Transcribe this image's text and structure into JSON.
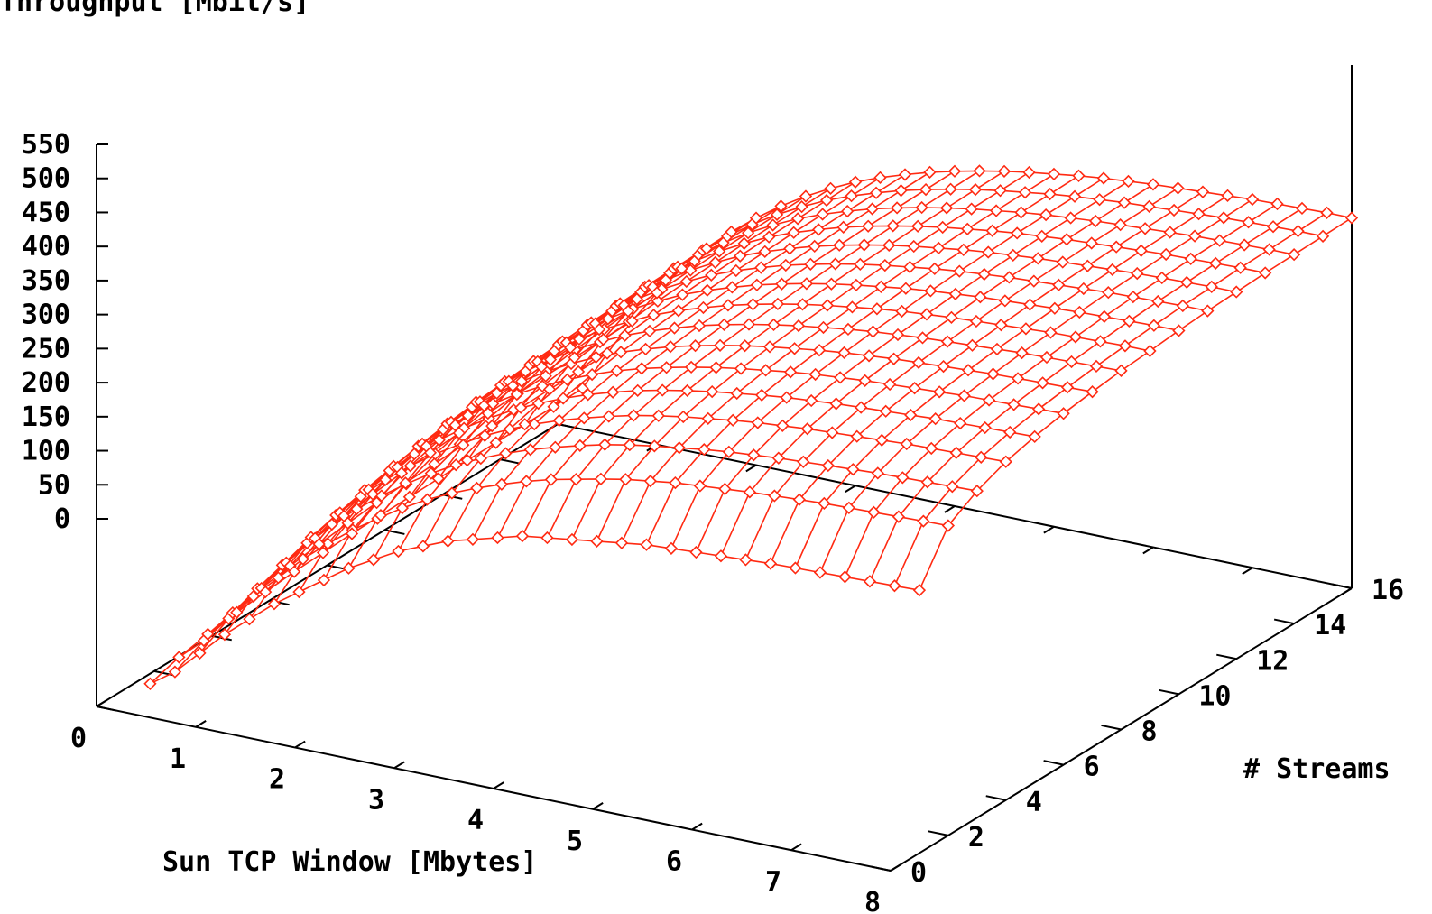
{
  "chart_data": {
    "type": "surface-3d",
    "title": "",
    "zlabel": "Throughput [Mbit/s]",
    "xlabel": "Sun TCP Window [Mbytes]",
    "ylabel": "# Streams",
    "xlim": [
      0,
      8
    ],
    "ylim": [
      0,
      16
    ],
    "zlim": [
      0,
      550
    ],
    "xticks": [
      "0",
      "1",
      "2",
      "3",
      "4",
      "5",
      "6",
      "7",
      "8"
    ],
    "yticks": [
      "0",
      "2",
      "4",
      "6",
      "8",
      "10",
      "12",
      "14",
      "16"
    ],
    "zticks": [
      "0",
      "50",
      "100",
      "150",
      "200",
      "250",
      "300",
      "350",
      "400",
      "450",
      "500",
      "550"
    ],
    "x": [
      0.25,
      0.5,
      0.75,
      1,
      1.25,
      1.5,
      1.75,
      2,
      2.25,
      2.5,
      2.75,
      3,
      3.25,
      3.5,
      3.75,
      4,
      4.25,
      4.5,
      4.75,
      5,
      5.25,
      5.5,
      5.75,
      6,
      6.25,
      6.5,
      6.75,
      7,
      7.25,
      7.5,
      7.75,
      8
    ],
    "series": [
      {
        "streams": 1,
        "values": [
          15,
          40,
          75,
          110,
          140,
          170,
          195,
          220,
          245,
          265,
          285,
          300,
          315,
          325,
          335,
          345,
          350,
          355,
          360,
          365,
          370,
          372,
          374,
          376,
          378,
          380,
          381,
          382,
          383,
          384,
          385,
          386
        ]
      },
      {
        "streams": 2,
        "values": [
          28,
          60,
          100,
          140,
          175,
          210,
          240,
          268,
          292,
          315,
          335,
          352,
          367,
          380,
          392,
          402,
          410,
          418,
          425,
          430,
          435,
          438,
          441,
          444,
          446,
          448,
          450,
          451,
          452,
          453,
          454,
          455
        ]
      },
      {
        "streams": 3,
        "values": [
          36,
          75,
          118,
          160,
          200,
          235,
          265,
          292,
          317,
          340,
          360,
          377,
          392,
          405,
          416,
          426,
          435,
          442,
          448,
          453,
          458,
          462,
          465,
          468,
          470,
          472,
          474,
          476,
          477,
          478,
          479,
          480
        ]
      },
      {
        "streams": 4,
        "values": [
          42,
          85,
          130,
          175,
          215,
          250,
          282,
          310,
          335,
          357,
          377,
          394,
          409,
          422,
          433,
          443,
          452,
          459,
          465,
          470,
          475,
          479,
          482,
          485,
          487,
          489,
          491,
          493,
          494,
          495,
          496,
          497
        ]
      },
      {
        "streams": 5,
        "values": [
          46,
          92,
          140,
          185,
          226,
          262,
          294,
          322,
          347,
          369,
          389,
          406,
          421,
          434,
          445,
          455,
          463,
          470,
          476,
          481,
          486,
          490,
          493,
          496,
          498,
          500,
          502,
          504,
          505,
          506,
          507,
          508
        ]
      },
      {
        "streams": 6,
        "values": [
          50,
          98,
          147,
          193,
          235,
          272,
          304,
          332,
          357,
          379,
          398,
          415,
          430,
          443,
          454,
          463,
          471,
          478,
          484,
          489,
          494,
          498,
          501,
          504,
          506,
          508,
          510,
          512,
          513,
          514,
          515,
          516
        ]
      },
      {
        "streams": 7,
        "values": [
          52,
          103,
          153,
          200,
          242,
          279,
          311,
          339,
          364,
          386,
          405,
          422,
          437,
          449,
          460,
          469,
          477,
          484,
          490,
          495,
          500,
          504,
          507,
          510,
          512,
          514,
          516,
          518,
          519,
          520,
          521,
          522
        ]
      },
      {
        "streams": 8,
        "values": [
          54,
          107,
          158,
          205,
          248,
          285,
          317,
          345,
          370,
          392,
          411,
          428,
          442,
          454,
          465,
          474,
          482,
          489,
          495,
          500,
          505,
          509,
          512,
          515,
          517,
          519,
          521,
          523,
          524,
          525,
          526,
          527
        ]
      },
      {
        "streams": 9,
        "values": [
          55,
          110,
          162,
          210,
          252,
          289,
          321,
          349,
          374,
          396,
          415,
          432,
          446,
          458,
          469,
          478,
          486,
          493,
          499,
          504,
          509,
          513,
          516,
          519,
          521,
          523,
          525,
          527,
          528,
          529,
          530,
          530
        ]
      },
      {
        "streams": 10,
        "values": [
          56,
          112,
          165,
          213,
          256,
          293,
          325,
          353,
          378,
          400,
          419,
          436,
          450,
          462,
          473,
          482,
          490,
          497,
          503,
          508,
          513,
          517,
          520,
          523,
          525,
          527,
          529,
          531,
          532,
          533,
          534,
          534
        ]
      },
      {
        "streams": 11,
        "values": [
          57,
          114,
          168,
          216,
          259,
          296,
          328,
          356,
          381,
          403,
          422,
          439,
          453,
          465,
          476,
          485,
          493,
          500,
          506,
          511,
          516,
          520,
          523,
          526,
          528,
          530,
          532,
          534,
          535,
          536,
          537,
          537
        ]
      },
      {
        "streams": 12,
        "values": [
          58,
          116,
          170,
          218,
          261,
          298,
          330,
          358,
          383,
          405,
          424,
          441,
          455,
          467,
          478,
          487,
          495,
          502,
          508,
          513,
          518,
          522,
          525,
          528,
          530,
          532,
          534,
          536,
          537,
          538,
          539,
          539
        ]
      },
      {
        "streams": 13,
        "values": [
          58,
          117,
          171,
          220,
          263,
          300,
          332,
          360,
          385,
          407,
          426,
          443,
          457,
          469,
          480,
          489,
          497,
          504,
          510,
          515,
          520,
          524,
          527,
          530,
          532,
          534,
          536,
          538,
          539,
          540,
          541,
          541
        ]
      },
      {
        "streams": 14,
        "values": [
          59,
          118,
          172,
          221,
          264,
          301,
          333,
          361,
          386,
          408,
          427,
          444,
          458,
          470,
          481,
          490,
          498,
          505,
          511,
          516,
          521,
          525,
          528,
          531,
          533,
          535,
          537,
          539,
          540,
          541,
          542,
          542
        ]
      },
      {
        "streams": 15,
        "values": [
          59,
          118,
          173,
          222,
          265,
          302,
          334,
          362,
          387,
          409,
          428,
          445,
          459,
          471,
          482,
          491,
          499,
          506,
          512,
          517,
          522,
          526,
          529,
          532,
          534,
          536,
          538,
          540,
          541,
          542,
          543,
          543
        ]
      },
      {
        "streams": 16,
        "values": [
          60,
          119,
          174,
          223,
          266,
          303,
          335,
          363,
          388,
          410,
          429,
          446,
          460,
          472,
          483,
          492,
          500,
          507,
          513,
          518,
          523,
          527,
          530,
          533,
          535,
          537,
          539,
          541,
          542,
          543,
          544,
          544
        ]
      }
    ],
    "grid": false,
    "legend": "none",
    "colors": {
      "surface": "#ff2a12",
      "axes": "#000000"
    }
  }
}
